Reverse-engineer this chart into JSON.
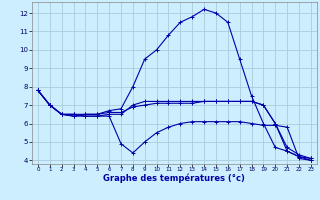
{
  "xlabel": "Graphe des températures (°c)",
  "background_color": "#cceeff",
  "grid_color": "#aaccdd",
  "line_color": "#0000aa",
  "xlim": [
    -0.5,
    23.5
  ],
  "ylim": [
    3.8,
    12.6
  ],
  "yticks": [
    4,
    5,
    6,
    7,
    8,
    9,
    10,
    11,
    12
  ],
  "xticks": [
    0,
    1,
    2,
    3,
    4,
    5,
    6,
    7,
    8,
    9,
    10,
    11,
    12,
    13,
    14,
    15,
    16,
    17,
    18,
    19,
    20,
    21,
    22,
    23
  ],
  "series": [
    {
      "x": [
        0,
        1,
        2,
        3,
        4,
        5,
        6,
        7,
        8,
        9,
        10,
        11,
        12,
        13,
        14,
        15,
        16,
        17,
        18,
        19,
        20,
        21,
        22,
        23
      ],
      "y": [
        7.8,
        7.0,
        6.5,
        6.4,
        6.5,
        6.5,
        6.7,
        6.8,
        8.0,
        9.5,
        10.0,
        10.8,
        11.5,
        11.8,
        12.2,
        12.0,
        11.5,
        9.5,
        7.5,
        6.0,
        4.7,
        4.5,
        4.2,
        4.1
      ]
    },
    {
      "x": [
        0,
        1,
        2,
        3,
        4,
        5,
        6,
        7,
        8,
        9,
        10,
        11,
        12,
        13,
        14,
        15,
        16,
        17,
        18,
        19,
        20,
        21,
        22,
        23
      ],
      "y": [
        7.8,
        7.0,
        6.5,
        6.5,
        6.5,
        6.5,
        6.6,
        6.6,
        6.9,
        7.0,
        7.1,
        7.1,
        7.1,
        7.1,
        7.2,
        7.2,
        7.2,
        7.2,
        7.2,
        7.0,
        6.0,
        4.7,
        4.3,
        4.1
      ]
    },
    {
      "x": [
        0,
        1,
        2,
        3,
        4,
        5,
        6,
        7,
        8,
        9,
        10,
        11,
        12,
        13,
        14,
        15,
        16,
        17,
        18,
        19,
        20,
        21,
        22,
        23
      ],
      "y": [
        7.8,
        7.0,
        6.5,
        6.5,
        6.4,
        6.4,
        6.5,
        6.5,
        7.0,
        7.2,
        7.2,
        7.2,
        7.2,
        7.2,
        7.2,
        7.2,
        7.2,
        7.2,
        7.2,
        7.0,
        6.0,
        4.5,
        4.2,
        4.0
      ]
    },
    {
      "x": [
        0,
        1,
        2,
        3,
        4,
        5,
        6,
        7,
        8,
        9,
        10,
        11,
        12,
        13,
        14,
        15,
        16,
        17,
        18,
        19,
        20,
        21,
        22,
        23
      ],
      "y": [
        7.8,
        7.0,
        6.5,
        6.4,
        6.4,
        6.4,
        6.4,
        4.9,
        4.4,
        5.0,
        5.5,
        5.8,
        6.0,
        6.1,
        6.1,
        6.1,
        6.1,
        6.1,
        6.0,
        5.9,
        5.9,
        5.8,
        4.1,
        4.0
      ]
    }
  ]
}
